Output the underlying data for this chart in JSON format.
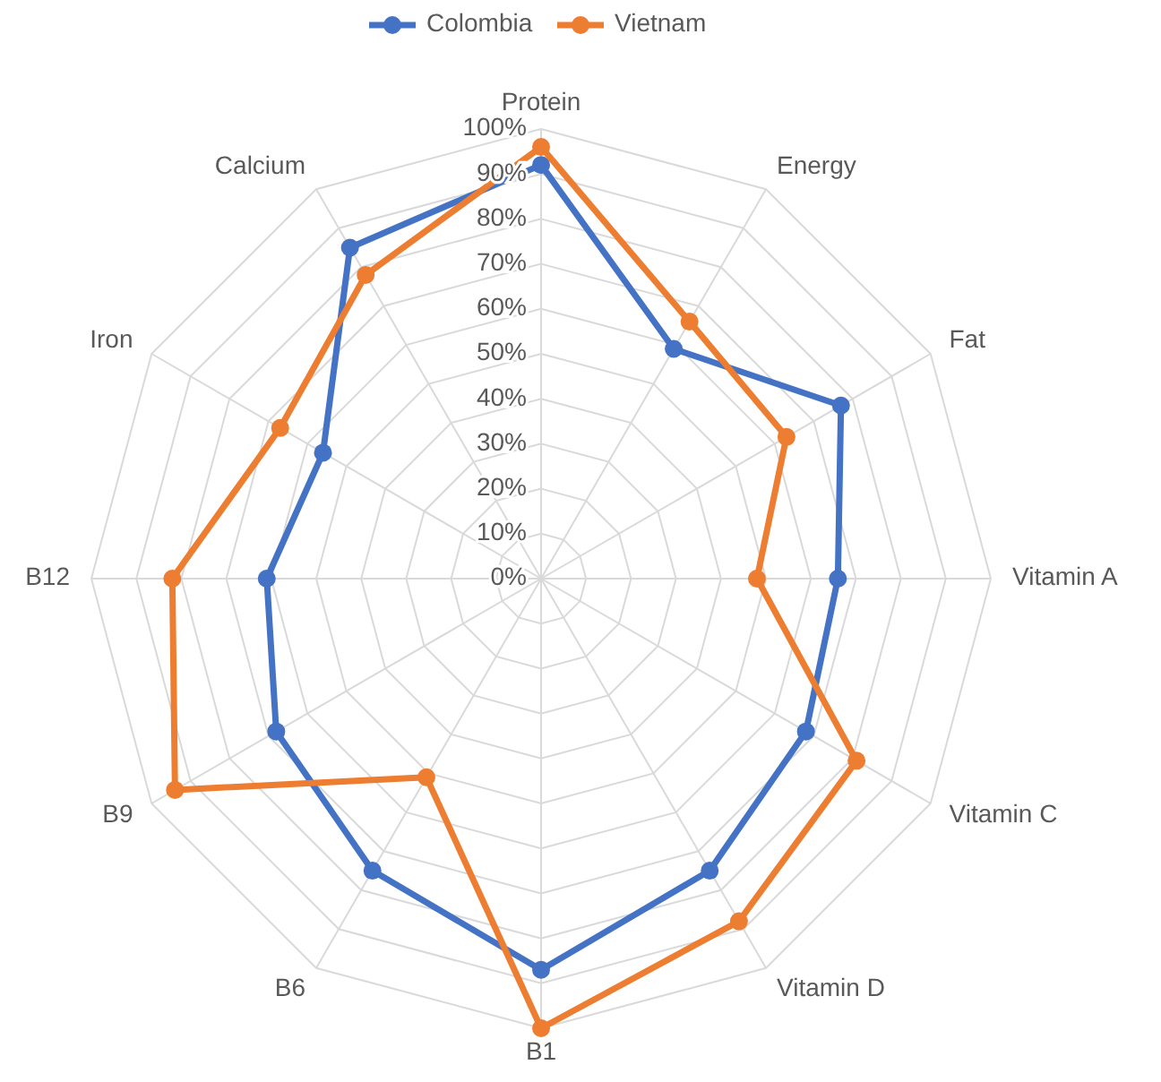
{
  "chart_data": {
    "type": "radar",
    "categories": [
      "Protein",
      "Energy",
      "Fat",
      "Vitamin A",
      "Vitamin C",
      "Vitamin D",
      "B1",
      "B6",
      "B9",
      "B12",
      "Iron",
      "Calcium"
    ],
    "series": [
      {
        "name": "Colombia",
        "color": "#4472c4",
        "values": [
          92,
          59,
          77,
          66,
          68,
          75,
          87,
          75,
          68,
          61,
          56,
          85
        ]
      },
      {
        "name": "Vietnam",
        "color": "#ed7d31",
        "values": [
          96,
          66,
          63,
          48,
          81,
          88,
          100,
          51,
          94,
          82,
          67,
          78
        ]
      }
    ],
    "ylim": [
      0,
      100
    ],
    "yticks": [
      {
        "value": 0,
        "label": "0%"
      },
      {
        "value": 10,
        "label": "10%"
      },
      {
        "value": 20,
        "label": "20%"
      },
      {
        "value": 30,
        "label": "30%"
      },
      {
        "value": 40,
        "label": "40%"
      },
      {
        "value": 50,
        "label": "50%"
      },
      {
        "value": 60,
        "label": "60%"
      },
      {
        "value": 70,
        "label": "70%"
      },
      {
        "value": 80,
        "label": "80%"
      },
      {
        "value": 90,
        "label": "90%"
      },
      {
        "value": 100,
        "label": "100%"
      }
    ],
    "grid": true,
    "legend": "top",
    "marker": "circle"
  }
}
